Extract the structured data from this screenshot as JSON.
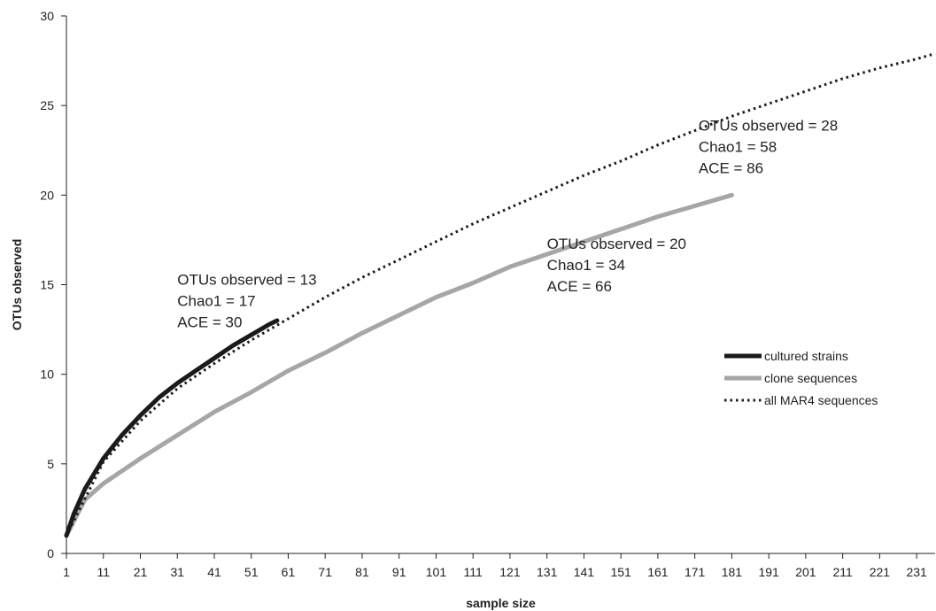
{
  "chart_data": {
    "type": "line",
    "title": "",
    "xlabel": "sample size",
    "ylabel": "OTUs observed",
    "xlim": [
      1,
      236
    ],
    "ylim": [
      0,
      30
    ],
    "x_ticks": [
      1,
      11,
      21,
      31,
      41,
      51,
      61,
      71,
      81,
      91,
      101,
      111,
      121,
      131,
      141,
      151,
      161,
      171,
      181,
      191,
      201,
      211,
      221,
      231
    ],
    "y_ticks": [
      0,
      5,
      10,
      15,
      20,
      25,
      30
    ],
    "grid": false,
    "legend_position": "right",
    "series": [
      {
        "name": "cultured strains",
        "style": "solid-thick",
        "color": "#1a1a1a",
        "points": [
          [
            1,
            1
          ],
          [
            3,
            2.2
          ],
          [
            6,
            3.6
          ],
          [
            11,
            5.3
          ],
          [
            16,
            6.6
          ],
          [
            21,
            7.7
          ],
          [
            26,
            8.7
          ],
          [
            31,
            9.5
          ],
          [
            36,
            10.2
          ],
          [
            41,
            10.9
          ],
          [
            46,
            11.6
          ],
          [
            51,
            12.2
          ],
          [
            56,
            12.8
          ],
          [
            58,
            13
          ]
        ]
      },
      {
        "name": "clone sequences",
        "style": "solid-gray",
        "color": "#a6a6a6",
        "points": [
          [
            1,
            1
          ],
          [
            6,
            3
          ],
          [
            11,
            3.9
          ],
          [
            21,
            5.3
          ],
          [
            31,
            6.6
          ],
          [
            41,
            7.9
          ],
          [
            51,
            9
          ],
          [
            61,
            10.2
          ],
          [
            71,
            11.2
          ],
          [
            81,
            12.3
          ],
          [
            91,
            13.3
          ],
          [
            101,
            14.3
          ],
          [
            111,
            15.1
          ],
          [
            121,
            16
          ],
          [
            131,
            16.7
          ],
          [
            141,
            17.4
          ],
          [
            151,
            18.1
          ],
          [
            161,
            18.8
          ],
          [
            171,
            19.4
          ],
          [
            181,
            20
          ]
        ]
      },
      {
        "name": "all MAR4 sequences",
        "style": "dotted",
        "color": "#1a1a1a",
        "points": [
          [
            1,
            1
          ],
          [
            11,
            5.1
          ],
          [
            21,
            7.4
          ],
          [
            31,
            9.2
          ],
          [
            41,
            10.6
          ],
          [
            51,
            11.9
          ],
          [
            61,
            13.1
          ],
          [
            71,
            14.3
          ],
          [
            81,
            15.4
          ],
          [
            91,
            16.4
          ],
          [
            101,
            17.4
          ],
          [
            111,
            18.4
          ],
          [
            121,
            19.3
          ],
          [
            131,
            20.2
          ],
          [
            141,
            21.1
          ],
          [
            151,
            21.9
          ],
          [
            161,
            22.8
          ],
          [
            171,
            23.6
          ],
          [
            181,
            24.4
          ],
          [
            191,
            25.1
          ],
          [
            201,
            25.8
          ],
          [
            211,
            26.5
          ],
          [
            221,
            27.1
          ],
          [
            231,
            27.6
          ],
          [
            236,
            27.9
          ]
        ]
      }
    ],
    "annotations": [
      {
        "lines": [
          "OTUs observed = 13",
          "Chao1 = 17",
          "ACE = 30"
        ],
        "anchor": [
          31,
          15
        ]
      },
      {
        "lines": [
          "OTUs observed = 20",
          "Chao1 = 34",
          "ACE = 66"
        ],
        "anchor": [
          131,
          17
        ]
      },
      {
        "lines": [
          "OTUs observed = 28",
          "Chao1 = 58",
          "ACE = 86"
        ],
        "anchor": [
          172,
          23.6
        ]
      }
    ]
  }
}
